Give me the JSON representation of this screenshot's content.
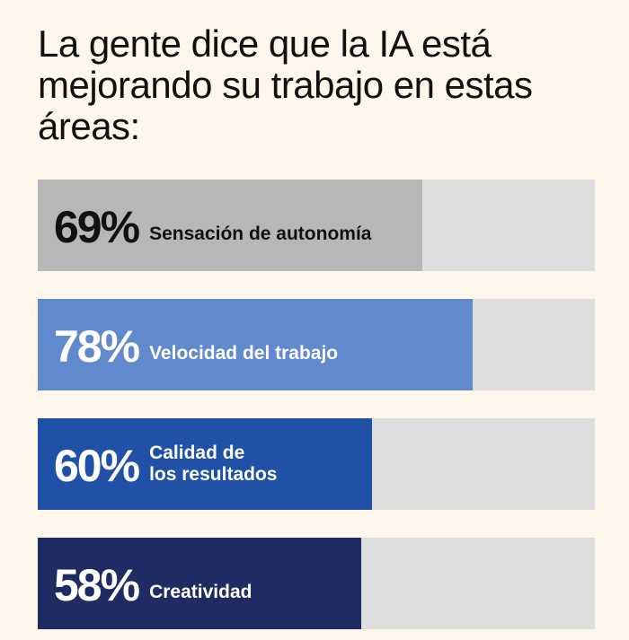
{
  "title": "La gente dice que la IA está mejorando su trabajo en estas áreas:",
  "chart_data": {
    "type": "bar",
    "orientation": "horizontal",
    "title": "La gente dice que la IA está mejorando su trabajo en estas áreas:",
    "xlim": [
      0,
      100
    ],
    "categories": [
      "Sensación de autonomía",
      "Velocidad del trabajo",
      "Calidad de\nlos resultados",
      "Creatividad"
    ],
    "values": [
      69,
      78,
      60,
      58
    ],
    "value_labels": [
      "69%",
      "78%",
      "60%",
      "58%"
    ],
    "colors": [
      "#b7b7b7",
      "#6189cd",
      "#2151a7",
      "#1e2c63"
    ],
    "text_colors": [
      "#111111",
      "#ffffff",
      "#ffffff",
      "#ffffff"
    ],
    "track_color": "#dddddd"
  }
}
